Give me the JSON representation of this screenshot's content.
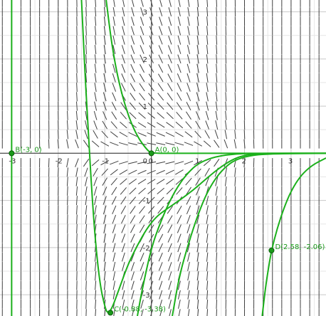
{
  "chart_data": {
    "type": "line",
    "title": "",
    "xlabel": "",
    "ylabel": "",
    "xlim": [
      -3.25,
      3.75
    ],
    "ylim": [
      -3.45,
      3.25
    ],
    "grid": true,
    "x_ticks": [
      "-3",
      "-2",
      "-1",
      "0",
      "1",
      "2",
      "3"
    ],
    "y_ticks": [
      "3",
      "2",
      "1",
      "-1",
      "-2",
      "-3"
    ],
    "x_tick_values": [
      -3,
      -2,
      -1,
      0,
      1,
      2,
      3
    ],
    "y_tick_values": [
      3,
      2,
      1,
      -1,
      -2,
      -3
    ],
    "slope_field": "dy/dx ≈ -y·e^(x²)",
    "points": [
      {
        "name": "A",
        "label": "A(0, 0)",
        "x": 0,
        "y": 0
      },
      {
        "name": "B",
        "label": "B(-3, 0)",
        "x": -3,
        "y": 0
      },
      {
        "name": "C",
        "label": "C(-0.88, -3.38)",
        "x": -0.88,
        "y": -3.38
      },
      {
        "name": "D",
        "label": "D(2.58, -2.06)",
        "x": 2.58,
        "y": -2.06
      }
    ],
    "curves": [
      {
        "kind": "vertical",
        "x": -3
      },
      {
        "kind": "curve",
        "points": [
          [
            -1.5,
            3.25
          ],
          [
            -1.42,
            1.6
          ],
          [
            -1.35,
            0.4
          ],
          [
            -1.28,
            -0.8
          ],
          [
            -1.2,
            -1.9
          ],
          [
            -1.1,
            -2.8
          ],
          [
            -1.0,
            -3.25
          ],
          [
            -0.94,
            -3.4
          ],
          [
            -0.85,
            -3.3
          ],
          [
            -0.7,
            -2.9
          ],
          [
            -0.5,
            -2.35
          ],
          [
            -0.3,
            -1.95
          ],
          [
            -0.1,
            -1.6
          ],
          [
            0.1,
            -1.35
          ],
          [
            0.3,
            -1.2
          ],
          [
            0.6,
            -1.0
          ],
          [
            0.9,
            -0.78
          ],
          [
            1.2,
            -0.52
          ],
          [
            1.5,
            -0.28
          ],
          [
            1.8,
            -0.1
          ],
          [
            2.1,
            -0.02
          ],
          [
            2.5,
            0
          ],
          [
            3.75,
            0
          ]
        ]
      },
      {
        "kind": "curve",
        "points": [
          [
            -0.97,
            3.25
          ],
          [
            -0.85,
            2.3
          ],
          [
            -0.7,
            1.5
          ],
          [
            -0.5,
            0.8
          ],
          [
            -0.3,
            0.35
          ],
          [
            -0.1,
            0.08
          ],
          [
            0,
            0
          ],
          [
            0.5,
            0
          ],
          [
            3.75,
            0
          ]
        ]
      },
      {
        "kind": "curve",
        "points": [
          [
            -0.3,
            -3.45
          ],
          [
            -0.2,
            -2.9
          ],
          [
            0,
            -2.0
          ],
          [
            0.2,
            -1.45
          ],
          [
            0.4,
            -1.0
          ],
          [
            0.6,
            -0.65
          ],
          [
            0.8,
            -0.4
          ],
          [
            1.0,
            -0.22
          ],
          [
            1.3,
            -0.09
          ],
          [
            1.7,
            -0.02
          ],
          [
            2.2,
            0
          ],
          [
            3.75,
            0
          ]
        ]
      },
      {
        "kind": "curve",
        "points": [
          [
            0.45,
            -3.45
          ],
          [
            0.6,
            -2.6
          ],
          [
            0.8,
            -1.9
          ],
          [
            1.0,
            -1.3
          ],
          [
            1.2,
            -0.82
          ],
          [
            1.4,
            -0.5
          ],
          [
            1.6,
            -0.28
          ],
          [
            1.8,
            -0.14
          ],
          [
            2.1,
            -0.05
          ],
          [
            2.5,
            -0.01
          ],
          [
            3.75,
            0
          ]
        ]
      },
      {
        "kind": "curve",
        "points": [
          [
            2.38,
            -3.45
          ],
          [
            2.45,
            -2.85
          ],
          [
            2.52,
            -2.4
          ],
          [
            2.58,
            -2.06
          ],
          [
            2.7,
            -1.6
          ],
          [
            2.85,
            -1.15
          ],
          [
            3.0,
            -0.8
          ],
          [
            3.2,
            -0.48
          ],
          [
            3.45,
            -0.25
          ],
          [
            3.75,
            -0.1
          ]
        ]
      }
    ]
  }
}
